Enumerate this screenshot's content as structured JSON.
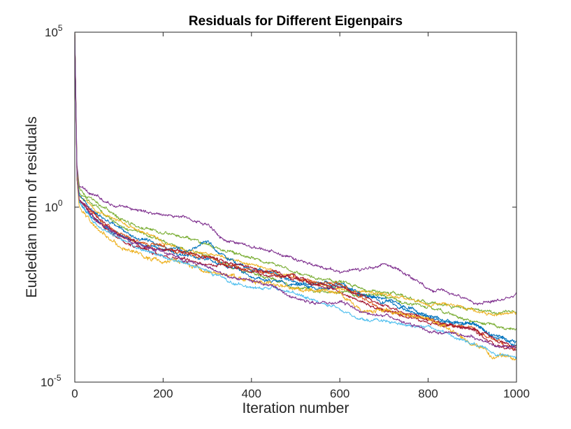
{
  "chart_data": {
    "type": "line",
    "title": "Residuals for Different Eigenpairs",
    "xlabel": "Iteration number",
    "ylabel": "Eucledian norm of residuals",
    "xlim": [
      0,
      1000
    ],
    "ylim_log10": [
      -5,
      5
    ],
    "yscale": "log",
    "x_ticks": [
      0,
      200,
      400,
      600,
      800,
      1000
    ],
    "x_tick_labels": [
      "0",
      "200",
      "400",
      "600",
      "800",
      "1000"
    ],
    "y_ticks": [
      {
        "base": "10",
        "exp": "-5"
      },
      {
        "base": "10",
        "exp": "0"
      },
      {
        "base": "10",
        "exp": "5"
      }
    ],
    "x": [
      0,
      5,
      10,
      50,
      100,
      150,
      200,
      250,
      300,
      350,
      400,
      450,
      500,
      550,
      600,
      650,
      700,
      750,
      800,
      850,
      900,
      950,
      1000
    ],
    "series": [
      {
        "name": "s1",
        "color": "#7E2F8E",
        "noise": 0.05,
        "log10_values": [
          5,
          1.2,
          0.6,
          0.3,
          0.0,
          -0.1,
          -0.2,
          -0.3,
          -0.5,
          -1.0,
          -1.15,
          -1.3,
          -1.5,
          -1.7,
          -1.85,
          -1.8,
          -1.6,
          -1.9,
          -2.3,
          -2.45,
          -2.75,
          -2.65,
          -2.5
        ]
      },
      {
        "name": "s2",
        "color": "#77AC30",
        "noise": 0.05,
        "log10_values": [
          5,
          1.1,
          0.5,
          0.1,
          -0.3,
          -0.55,
          -0.7,
          -0.9,
          -1.1,
          -1.25,
          -1.45,
          -1.6,
          -1.9,
          -2.05,
          -2.1,
          -2.35,
          -2.45,
          -2.55,
          -2.75,
          -2.8,
          -2.9,
          -3.0,
          -3.0
        ]
      },
      {
        "name": "s3",
        "color": "#77AC30",
        "noise": 0.05,
        "log10_values": [
          5,
          1.0,
          0.4,
          0.0,
          -0.5,
          -0.75,
          -0.95,
          -1.2,
          -1.4,
          -1.7,
          -1.9,
          -2.05,
          -2.3,
          -2.4,
          -2.4,
          -2.5,
          -2.55,
          -2.75,
          -2.85,
          -3.05,
          -3.25,
          -3.4,
          -3.5
        ]
      },
      {
        "name": "s4",
        "color": "#EDB120",
        "noise": 0.05,
        "log10_values": [
          5,
          1.0,
          0.3,
          -0.1,
          -0.4,
          -0.7,
          -1.0,
          -1.2,
          -1.3,
          -1.5,
          -1.65,
          -1.8,
          -2.0,
          -2.2,
          -2.3,
          -2.4,
          -2.5,
          -2.6,
          -2.8,
          -2.8,
          -2.9,
          -3.1,
          -3.05
        ]
      },
      {
        "name": "s5",
        "color": "#0072BD",
        "noise": 0.06,
        "log10_values": [
          5,
          0.9,
          0.3,
          -0.2,
          -0.6,
          -0.9,
          -1.1,
          -1.25,
          -1.0,
          -1.5,
          -1.8,
          -1.9,
          -2.15,
          -2.15,
          -2.2,
          -2.55,
          -2.6,
          -2.85,
          -3.15,
          -3.25,
          -3.35,
          -3.65,
          -3.85
        ]
      },
      {
        "name": "s6",
        "color": "#0072BD",
        "noise": 0.06,
        "log10_values": [
          5,
          0.8,
          0.1,
          -0.4,
          -0.8,
          -1.05,
          -1.2,
          -1.35,
          -1.5,
          -1.7,
          -1.95,
          -2.1,
          -2.2,
          -2.35,
          -2.25,
          -2.5,
          -2.7,
          -2.95,
          -3.15,
          -3.3,
          -3.3,
          -3.7,
          -3.95
        ]
      },
      {
        "name": "s7",
        "color": "#D95319",
        "noise": 0.06,
        "log10_values": [
          5,
          0.9,
          0.2,
          -0.3,
          -0.7,
          -1.0,
          -1.15,
          -1.35,
          -1.45,
          -1.7,
          -1.8,
          -1.9,
          -2.05,
          -2.15,
          -2.2,
          -2.6,
          -2.95,
          -3.05,
          -3.2,
          -3.4,
          -3.45,
          -3.8,
          -4.05
        ]
      },
      {
        "name": "s8",
        "color": "#A2142F",
        "noise": 0.05,
        "log10_values": [
          5,
          0.9,
          0.2,
          -0.3,
          -0.8,
          -1.1,
          -1.2,
          -1.3,
          -1.4,
          -1.6,
          -1.75,
          -1.85,
          -2.0,
          -2.2,
          -2.4,
          -2.7,
          -3.0,
          -3.1,
          -3.3,
          -3.4,
          -3.5,
          -3.9,
          -4.1
        ]
      },
      {
        "name": "s9",
        "color": "#A2142F",
        "noise": 0.05,
        "log10_values": [
          5,
          0.8,
          0.2,
          -0.4,
          -0.9,
          -1.2,
          -1.35,
          -1.5,
          -1.65,
          -1.7,
          -1.85,
          -1.95,
          -2.05,
          -2.2,
          -2.3,
          -2.55,
          -2.85,
          -3.05,
          -3.2,
          -3.35,
          -3.5,
          -3.75,
          -4.0
        ]
      },
      {
        "name": "s10",
        "color": "#EDB120",
        "noise": 0.07,
        "log10_values": [
          5,
          0.8,
          0.0,
          -0.6,
          -1.1,
          -1.4,
          -1.55,
          -1.6,
          -1.85,
          -1.95,
          -2.1,
          -2.2,
          -2.35,
          -2.4,
          -2.4,
          -3.0,
          -2.9,
          -3.05,
          -3.15,
          -3.55,
          -3.9,
          -4.25,
          -4.3
        ]
      },
      {
        "name": "s11",
        "color": "#4DBEEE",
        "noise": 0.05,
        "log10_values": [
          5,
          0.9,
          0.2,
          -0.5,
          -0.9,
          -1.2,
          -1.4,
          -1.6,
          -1.8,
          -2.1,
          -2.3,
          -2.25,
          -2.45,
          -2.7,
          -2.9,
          -3.2,
          -3.25,
          -3.35,
          -3.45,
          -3.65,
          -3.9,
          -4.15,
          -4.3
        ]
      },
      {
        "name": "s12",
        "color": "#7E2F8E",
        "noise": 0.05,
        "log10_values": [
          5,
          0.9,
          0.2,
          -0.4,
          -0.8,
          -1.1,
          -1.3,
          -1.5,
          -1.7,
          -2.0,
          -2.1,
          -2.3,
          -2.6,
          -2.75,
          -2.7,
          -3.0,
          -3.05,
          -3.3,
          -3.55,
          -3.6,
          -3.7,
          -3.95,
          -4.05
        ]
      }
    ]
  }
}
